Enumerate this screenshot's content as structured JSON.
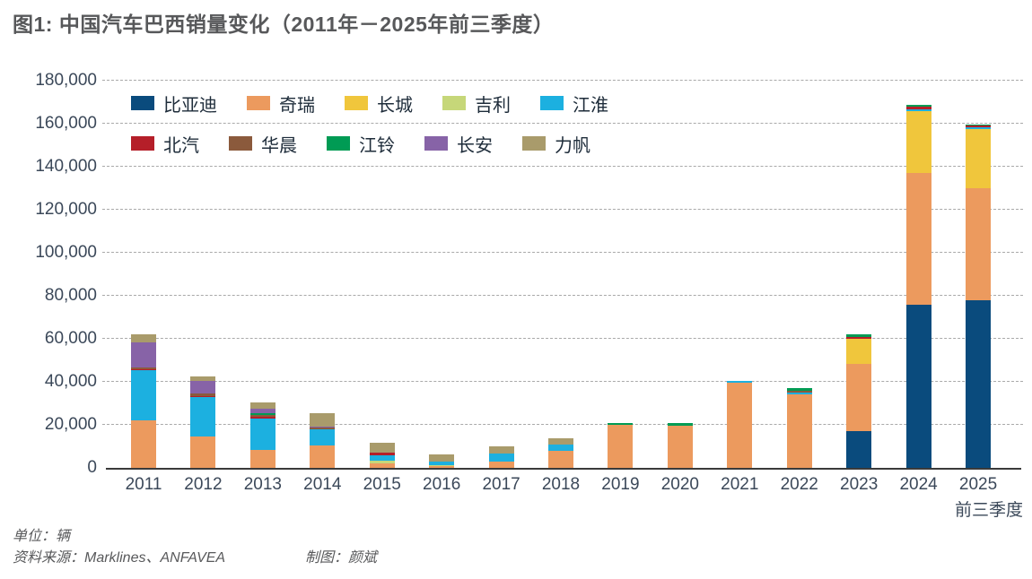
{
  "title": "图1: 中国汽车巴西销量变化（2011年－2025年前三季度）",
  "footer": {
    "unit": "单位：辆",
    "source": "资料来源：Marklines、ANFAVEA",
    "credit": "制图：颜斌"
  },
  "chart_data": {
    "type": "bar",
    "stacked": true,
    "title": "中国汽车巴西销量变化",
    "categories": [
      "2011",
      "2012",
      "2013",
      "2014",
      "2015",
      "2016",
      "2017",
      "2018",
      "2019",
      "2020",
      "2021",
      "2022",
      "2023",
      "2024",
      "2025"
    ],
    "x_sub_label": "前三季度",
    "x_sub_label_category": "2025",
    "ylim": [
      0,
      180000
    ],
    "ytick_step": 20000,
    "ytick_labels": [
      "0",
      "20,000",
      "40,000",
      "60,000",
      "80,000",
      "100,000",
      "120,000",
      "140,000",
      "160,000",
      "180,000"
    ],
    "grid": "horizontal-dashed",
    "legend_position": "top-left-inside",
    "legend_rows": 2,
    "axis_color": "#3a3a3a",
    "gridline_color": "#a9a9a9",
    "series": [
      {
        "id": "byd",
        "name": "比亚迪",
        "color": "#0a4b7d",
        "values": [
          0,
          0,
          0,
          0,
          0,
          0,
          0,
          0,
          0,
          0,
          0,
          0,
          17000,
          76000,
          78000
        ]
      },
      {
        "id": "chery",
        "name": "奇瑞",
        "color": "#ec9a5e",
        "values": [
          22000,
          14500,
          8300,
          10500,
          2200,
          700,
          2800,
          7800,
          20000,
          19700,
          39500,
          34000,
          31500,
          61000,
          52000
        ]
      },
      {
        "id": "greatwall",
        "name": "长城",
        "color": "#f0c63c",
        "values": [
          0,
          0,
          0,
          0,
          0,
          0,
          0,
          0,
          0,
          0,
          0,
          0,
          11500,
          29000,
          27500
        ]
      },
      {
        "id": "geely",
        "name": "吉利",
        "color": "#c6d779",
        "values": [
          0,
          0,
          0,
          0,
          1200,
          700,
          0,
          0,
          0,
          0,
          0,
          0,
          0,
          0,
          0
        ]
      },
      {
        "id": "jac",
        "name": "江淮",
        "color": "#1cb0e0",
        "values": [
          23500,
          18300,
          14600,
          7400,
          2500,
          1400,
          3900,
          2900,
          0,
          0,
          1000,
          1200,
          0,
          700,
          800
        ]
      },
      {
        "id": "baic",
        "name": "北汽",
        "color": "#b51f29",
        "values": [
          500,
          600,
          800,
          0,
          1000,
          0,
          0,
          0,
          0,
          0,
          0,
          0,
          1000,
          1100,
          700
        ]
      },
      {
        "id": "brilliance",
        "name": "华晨",
        "color": "#8b5a3c",
        "values": [
          800,
          1200,
          900,
          800,
          0,
          0,
          0,
          0,
          0,
          0,
          0,
          700,
          0,
          0,
          0
        ]
      },
      {
        "id": "jmc",
        "name": "江铃",
        "color": "#009b54",
        "values": [
          0,
          0,
          800,
          0,
          0,
          0,
          0,
          0,
          900,
          1100,
          0,
          1200,
          1000,
          900,
          700
        ]
      },
      {
        "id": "changan",
        "name": "长安",
        "color": "#8763a7",
        "values": [
          11400,
          6000,
          2100,
          500,
          0,
          0,
          0,
          0,
          0,
          0,
          0,
          0,
          0,
          0,
          0
        ]
      },
      {
        "id": "lifan",
        "name": "力帆",
        "color": "#a99b6b",
        "values": [
          3800,
          2000,
          3000,
          6300,
          4800,
          3400,
          3100,
          3000,
          0,
          0,
          0,
          0,
          0,
          0,
          0
        ]
      }
    ]
  }
}
